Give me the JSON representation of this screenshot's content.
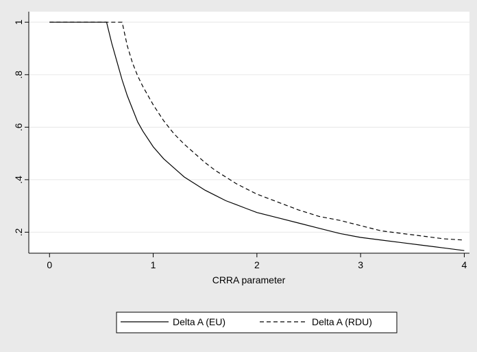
{
  "chart_data": {
    "type": "line",
    "title": "",
    "xlabel": "CRRA parameter",
    "ylabel": "",
    "xlim": [
      -0.2,
      4.05
    ],
    "ylim": [
      0.12,
      1.04
    ],
    "x_ticks": [
      0,
      1,
      2,
      3,
      4
    ],
    "x_tick_labels": [
      "0",
      "1",
      "2",
      "3",
      "4"
    ],
    "y_ticks": [
      0.2,
      0.4,
      0.6,
      0.8,
      1.0
    ],
    "y_tick_labels": [
      ".2",
      ".4",
      ".6",
      ".8",
      "1"
    ],
    "grid": "horizontal",
    "legend_position": "bottom",
    "series": [
      {
        "name": "Delta A (EU)",
        "style": "solid",
        "color": "#000000",
        "x": [
          0,
          0.2,
          0.4,
          0.55,
          0.6,
          0.65,
          0.7,
          0.75,
          0.8,
          0.85,
          0.9,
          1.0,
          1.1,
          1.2,
          1.3,
          1.4,
          1.5,
          1.6,
          1.7,
          1.8,
          1.9,
          2.0,
          2.2,
          2.4,
          2.6,
          2.8,
          3.0,
          3.2,
          3.4,
          3.6,
          3.8,
          4.0
        ],
        "y": [
          1.0,
          1.0,
          1.0,
          1.0,
          0.92,
          0.85,
          0.78,
          0.72,
          0.67,
          0.62,
          0.585,
          0.525,
          0.48,
          0.445,
          0.41,
          0.385,
          0.36,
          0.34,
          0.32,
          0.305,
          0.29,
          0.275,
          0.255,
          0.235,
          0.215,
          0.195,
          0.18,
          0.17,
          0.16,
          0.15,
          0.14,
          0.13
        ]
      },
      {
        "name": "Delta A (RDU)",
        "style": "dashed",
        "color": "#000000",
        "x": [
          0,
          0.2,
          0.4,
          0.6,
          0.7,
          0.75,
          0.8,
          0.85,
          0.9,
          1.0,
          1.1,
          1.2,
          1.3,
          1.4,
          1.5,
          1.6,
          1.7,
          1.8,
          1.9,
          2.0,
          2.2,
          2.4,
          2.6,
          2.8,
          3.0,
          3.2,
          3.4,
          3.6,
          3.8,
          4.0
        ],
        "y": [
          1.0,
          1.0,
          1.0,
          1.0,
          1.0,
          0.91,
          0.845,
          0.795,
          0.755,
          0.685,
          0.625,
          0.575,
          0.535,
          0.5,
          0.465,
          0.435,
          0.41,
          0.385,
          0.365,
          0.345,
          0.315,
          0.285,
          0.26,
          0.245,
          0.225,
          0.205,
          0.195,
          0.185,
          0.175,
          0.17
        ]
      }
    ]
  }
}
